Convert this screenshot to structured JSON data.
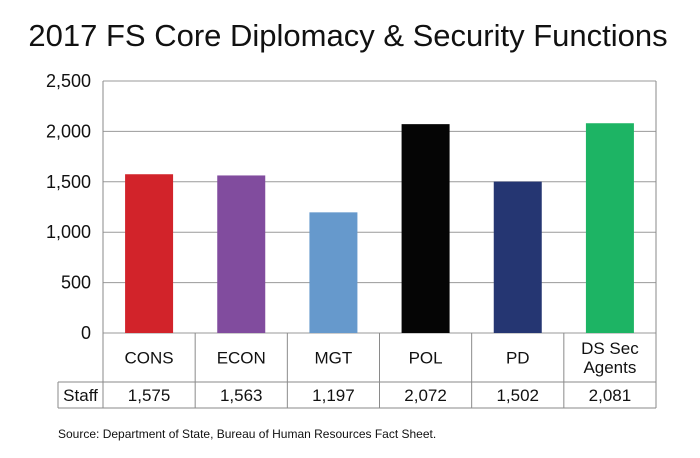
{
  "chart_data": {
    "type": "bar",
    "title": "2017 FS Core Diplomacy & Security Functions",
    "categories": [
      [
        "CONS"
      ],
      [
        "ECON"
      ],
      [
        "MGT"
      ],
      [
        "POL"
      ],
      [
        "PD"
      ],
      [
        "DS Sec",
        "Agents"
      ]
    ],
    "series": [
      {
        "name": "Staff",
        "values": [
          1575,
          1563,
          1197,
          2072,
          1502,
          2081
        ],
        "value_labels": [
          "1,575",
          "1,563",
          "1,197",
          "2,072",
          "1,502",
          "2,081"
        ],
        "colors": [
          "#d2232a",
          "#814c9e",
          "#6699cc",
          "#050505",
          "#253672",
          "#1db464"
        ]
      }
    ],
    "ylim": [
      0,
      2500
    ],
    "yticks": [
      0,
      500,
      1000,
      1500,
      2000,
      2500
    ],
    "ytick_labels": [
      "0",
      "500",
      "1,000",
      "1,500",
      "2,000",
      "2,500"
    ],
    "grid": true,
    "legend": "none",
    "data_table": true,
    "source": "Source: Department of State, Bureau of Human Resources Fact Sheet."
  }
}
